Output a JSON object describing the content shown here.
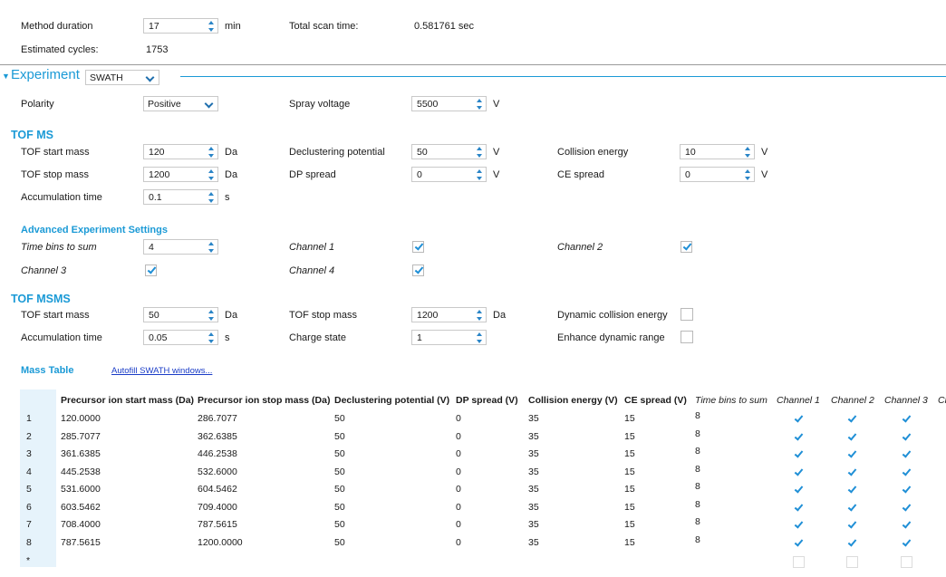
{
  "method": {
    "duration_label": "Method duration",
    "duration_value": "17",
    "duration_unit": "min",
    "scan_time_label": "Total scan time:",
    "scan_time_value": "0.581761 sec",
    "cycles_label": "Estimated cycles:",
    "cycles_value": "1753"
  },
  "experiment": {
    "label": "Experiment",
    "type_value": "SWATH",
    "polarity_label": "Polarity",
    "polarity_value": "Positive",
    "spray_label": "Spray voltage",
    "spray_value": "5500",
    "spray_unit": "V"
  },
  "tofms": {
    "title": "TOF MS",
    "start_mass_label": "TOF start mass",
    "start_mass_value": "120",
    "stop_mass_label": "TOF stop mass",
    "stop_mass_value": "1200",
    "accum_label": "Accumulation time",
    "accum_value": "0.1",
    "accum_unit": "s",
    "da": "Da",
    "dp_label": "Declustering potential",
    "dp_value": "50",
    "dps_label": "DP spread",
    "dps_value": "0",
    "ce_label": "Collision energy",
    "ce_value": "10",
    "ces_label": "CE spread",
    "ces_value": "0",
    "v": "V"
  },
  "advanced": {
    "title": "Advanced Experiment Settings",
    "bins_label": "Time bins to sum",
    "bins_value": "4",
    "ch1_label": "Channel 1",
    "ch2_label": "Channel 2",
    "ch3_label": "Channel 3",
    "ch4_label": "Channel 4"
  },
  "tofmsms": {
    "title": "TOF MSMS",
    "start_mass_label": "TOF start mass",
    "start_mass_value": "50",
    "accum_label": "Accumulation time",
    "accum_value": "0.05",
    "stop_mass_label": "TOF stop mass",
    "stop_mass_value": "1200",
    "charge_label": "Charge state",
    "charge_value": "1",
    "dce_label": "Dynamic collision energy",
    "edr_label": "Enhance dynamic range",
    "da": "Da",
    "s": "s"
  },
  "mass_table": {
    "title": "Mass Table",
    "autofill_link": "Autofill SWATH windows...",
    "headers": [
      "Precursor ion start mass (Da)",
      "Precursor ion stop mass (Da)",
      "Declustering potential (V)",
      "DP spread (V)",
      "Collision energy (V)",
      "CE spread (V)",
      "Time bins to sum",
      "Channel 1",
      "Channel 2",
      "Channel 3",
      "Ch"
    ],
    "rows": [
      [
        "1",
        "120.0000",
        "286.7077",
        "50",
        "0",
        "35",
        "15",
        "8"
      ],
      [
        "2",
        "285.7077",
        "362.6385",
        "50",
        "0",
        "35",
        "15",
        "8"
      ],
      [
        "3",
        "361.6385",
        "446.2538",
        "50",
        "0",
        "35",
        "15",
        "8"
      ],
      [
        "4",
        "445.2538",
        "532.6000",
        "50",
        "0",
        "35",
        "15",
        "8"
      ],
      [
        "5",
        "531.6000",
        "604.5462",
        "50",
        "0",
        "35",
        "15",
        "8"
      ],
      [
        "6",
        "603.5462",
        "709.4000",
        "50",
        "0",
        "35",
        "15",
        "8"
      ],
      [
        "7",
        "708.4000",
        "787.5615",
        "50",
        "0",
        "35",
        "15",
        "8"
      ],
      [
        "8",
        "787.5615",
        "1200.0000",
        "50",
        "0",
        "35",
        "15",
        "8"
      ]
    ],
    "new_row_marker": "*"
  }
}
